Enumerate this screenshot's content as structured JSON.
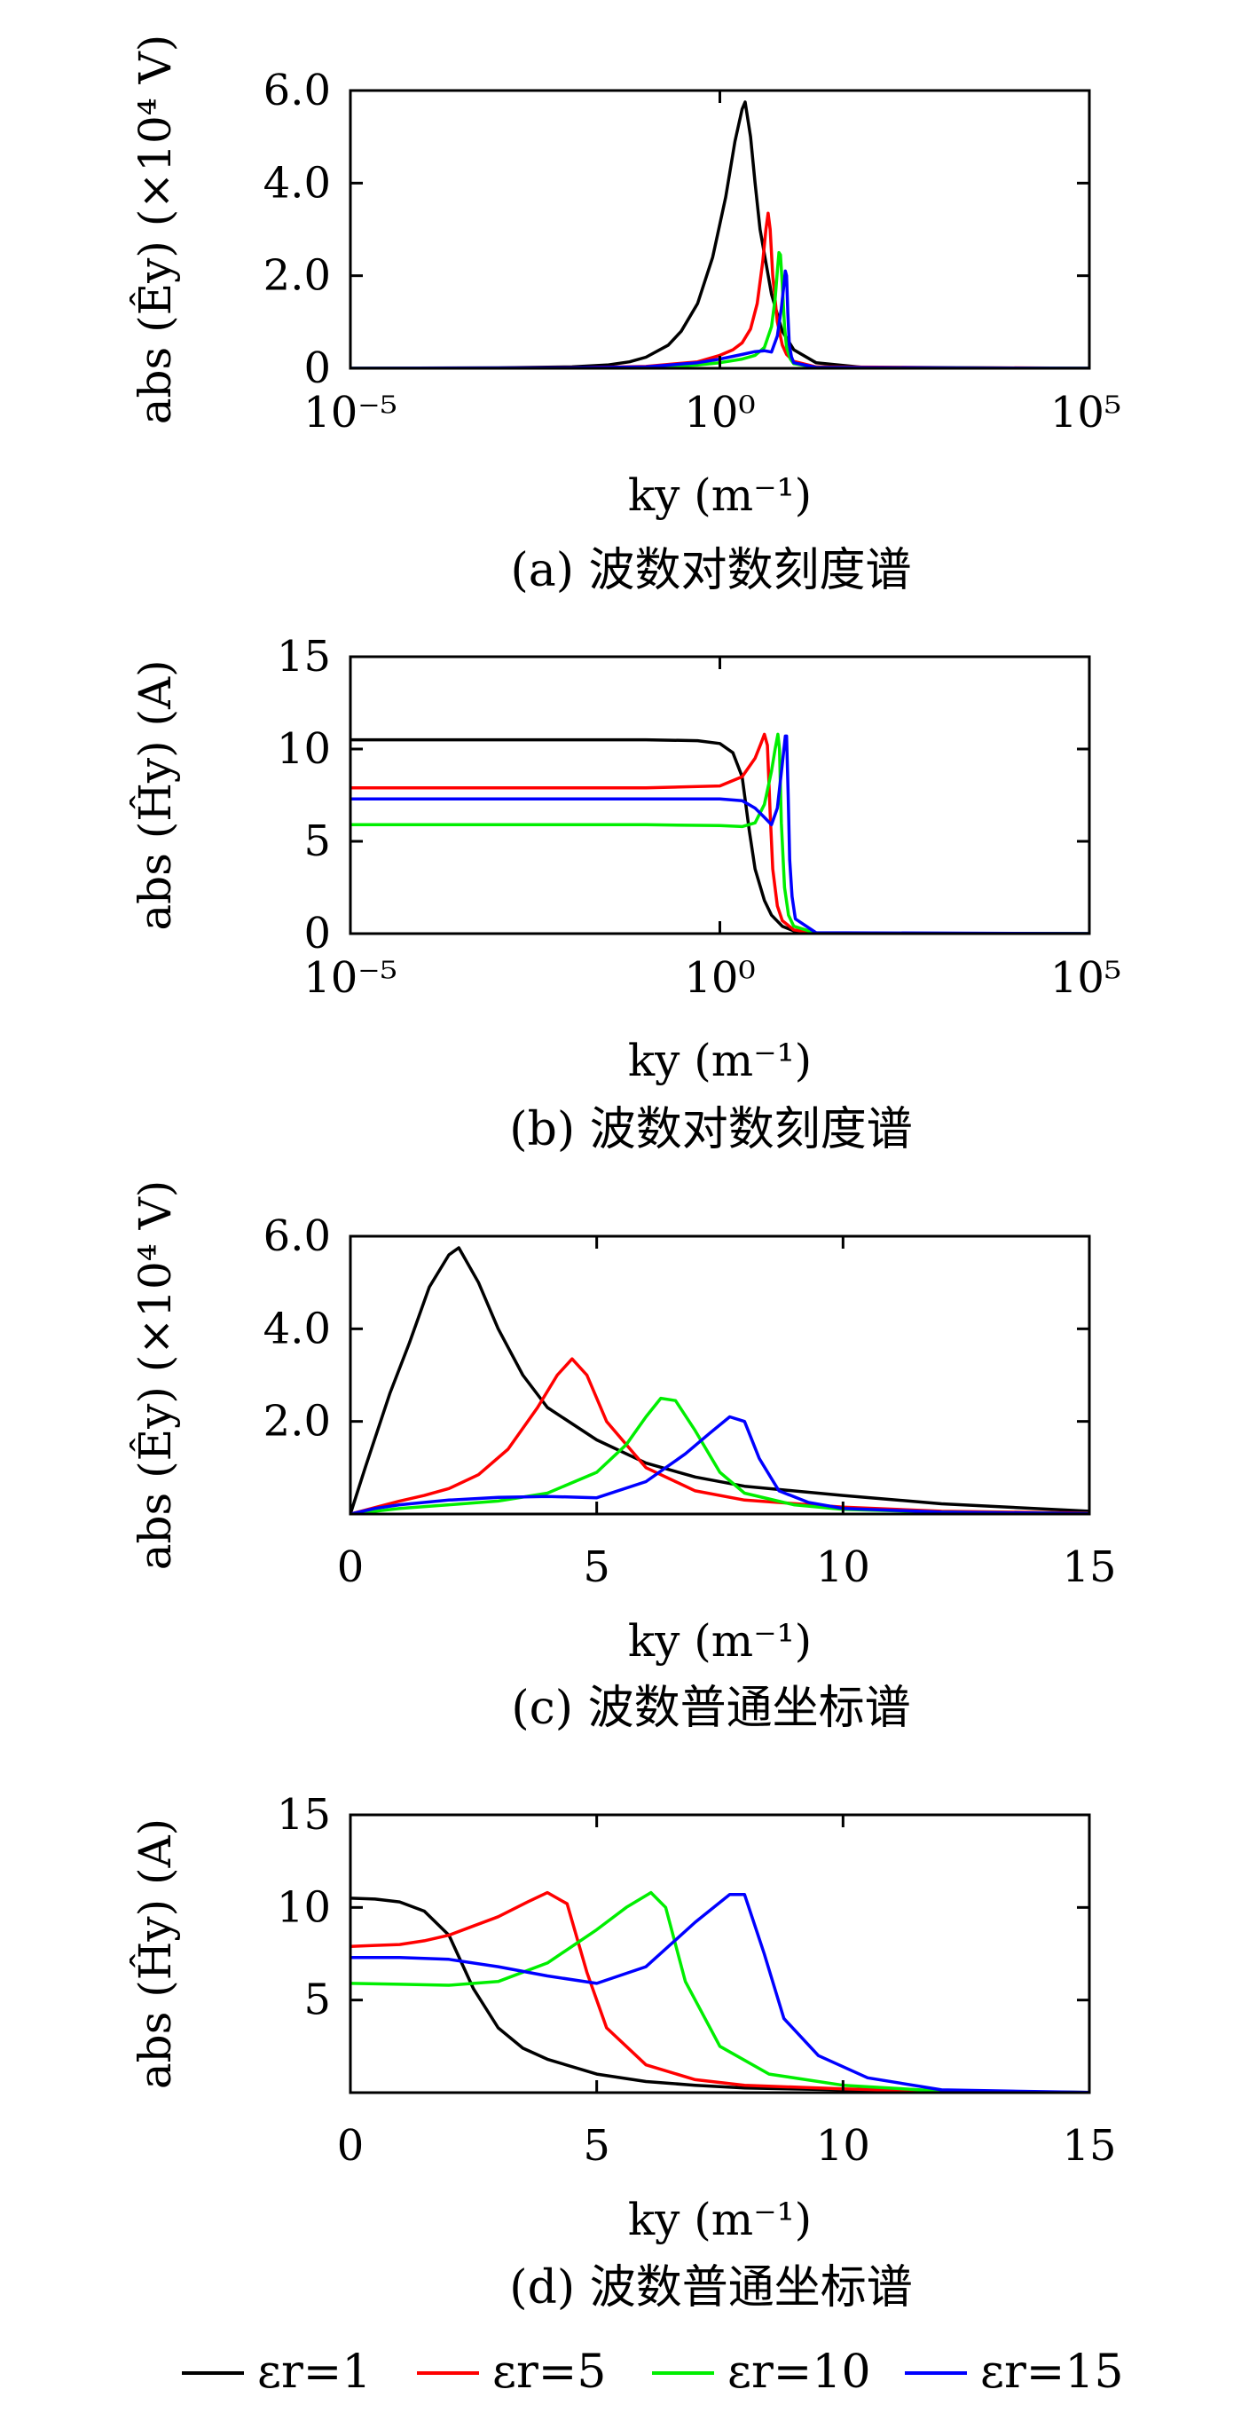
{
  "figure": {
    "legend": [
      {
        "name": "εr=1",
        "color": "#000000"
      },
      {
        "name": "εr=5",
        "color": "#ff0000"
      },
      {
        "name": "εr=10",
        "color": "#00ee00"
      },
      {
        "name": "εr=15",
        "color": "#0000ff"
      }
    ]
  },
  "chart_data": [
    {
      "type": "line",
      "caption": "(a) 波数对数刻度谱",
      "xlabel": "ky (m⁻¹)",
      "ylabel": "abs (Êy) (×10⁴ V)",
      "xscale": "log",
      "xlim": [
        1e-05,
        100000
      ],
      "ylim": [
        0,
        6.0
      ],
      "xticks": [
        {
          "v": 1e-05,
          "label": "10⁻⁵"
        },
        {
          "v": 1,
          "label": "10⁰"
        },
        {
          "v": 100000,
          "label": "10⁵"
        }
      ],
      "yticks": [
        {
          "v": 0,
          "label": "0"
        },
        {
          "v": 2,
          "label": "2.0"
        },
        {
          "v": 4,
          "label": "4.0"
        },
        {
          "v": 6,
          "label": "6.0"
        }
      ],
      "series": [
        {
          "name": "εr=1",
          "color": "#000000",
          "x": [
            1e-05,
            0.001,
            0.01,
            0.03,
            0.06,
            0.1,
            0.2,
            0.3,
            0.5,
            0.8,
            1.2,
            1.6,
            2.0,
            2.2,
            2.6,
            3.0,
            3.5,
            5,
            7,
            10,
            20,
            100,
            100000
          ],
          "y": [
            0,
            0.01,
            0.03,
            0.07,
            0.14,
            0.24,
            0.5,
            0.8,
            1.4,
            2.4,
            3.7,
            4.9,
            5.6,
            5.75,
            5.0,
            4.0,
            3.0,
            1.6,
            0.8,
            0.4,
            0.12,
            0.01,
            0
          ]
        },
        {
          "name": "εr=5",
          "color": "#ff0000",
          "x": [
            1e-05,
            0.001,
            0.01,
            0.1,
            0.5,
            1.0,
            1.5,
            2.0,
            2.6,
            3.2,
            3.8,
            4.2,
            4.5,
            4.8,
            5.2,
            6,
            7,
            8,
            10,
            20,
            100000
          ],
          "y": [
            0,
            0.005,
            0.01,
            0.04,
            0.14,
            0.28,
            0.4,
            0.55,
            0.85,
            1.4,
            2.3,
            3.0,
            3.35,
            3.0,
            2.0,
            1.0,
            0.5,
            0.3,
            0.15,
            0.03,
            0
          ]
        },
        {
          "name": "εr=10",
          "color": "#00ee00",
          "x": [
            1e-05,
            0.01,
            0.1,
            0.5,
            1,
            2,
            3,
            4,
            5,
            5.6,
            6.0,
            6.3,
            6.6,
            7.0,
            7.5,
            8,
            9,
            10,
            20,
            100000
          ],
          "y": [
            0,
            0.005,
            0.02,
            0.07,
            0.12,
            0.2,
            0.28,
            0.45,
            0.9,
            1.5,
            2.1,
            2.5,
            2.45,
            1.8,
            0.9,
            0.45,
            0.2,
            0.1,
            0.02,
            0
          ]
        },
        {
          "name": "εr=15",
          "color": "#0000ff",
          "x": [
            1e-05,
            0.01,
            0.1,
            0.5,
            1,
            2,
            3,
            4,
            5,
            6,
            6.8,
            7.3,
            7.7,
            8.0,
            8.3,
            8.7,
            9.3,
            10,
            20,
            100000
          ],
          "y": [
            0,
            0.01,
            0.03,
            0.12,
            0.2,
            0.3,
            0.36,
            0.38,
            0.35,
            0.7,
            1.3,
            1.75,
            2.1,
            2.0,
            1.2,
            0.5,
            0.25,
            0.12,
            0.02,
            0
          ]
        }
      ]
    },
    {
      "type": "line",
      "caption": "(b) 波数对数刻度谱",
      "xlabel": "ky (m⁻¹)",
      "ylabel": "abs (Ĥy) (A)",
      "xscale": "log",
      "xlim": [
        1e-05,
        100000
      ],
      "ylim": [
        0,
        15
      ],
      "xticks": [
        {
          "v": 1e-05,
          "label": "10⁻⁵"
        },
        {
          "v": 1,
          "label": "10⁰"
        },
        {
          "v": 100000,
          "label": "10⁵"
        }
      ],
      "yticks": [
        {
          "v": 0,
          "label": "0"
        },
        {
          "v": 5,
          "label": "5"
        },
        {
          "v": 10,
          "label": "10"
        },
        {
          "v": 15,
          "label": "15"
        }
      ],
      "series": [
        {
          "name": "εr=1",
          "color": "#000000",
          "x": [
            1e-05,
            0.1,
            0.5,
            1.0,
            1.5,
            2.0,
            2.5,
            3.0,
            4.0,
            5.0,
            7.0,
            10,
            20,
            100000
          ],
          "y": [
            10.5,
            10.5,
            10.45,
            10.3,
            9.8,
            8.5,
            5.6,
            3.5,
            1.8,
            1.0,
            0.4,
            0.15,
            0.02,
            0
          ]
        },
        {
          "name": "εr=5",
          "color": "#ff0000",
          "x": [
            1e-05,
            0.1,
            1.0,
            2.0,
            3.0,
            3.6,
            4.0,
            4.4,
            4.8,
            5.2,
            6.0,
            7.0,
            10,
            20,
            100000
          ],
          "y": [
            7.9,
            7.9,
            8.0,
            8.5,
            9.5,
            10.3,
            10.8,
            10.2,
            6.5,
            3.5,
            1.5,
            0.7,
            0.2,
            0.02,
            0
          ]
        },
        {
          "name": "εr=10",
          "color": "#00ee00",
          "x": [
            1e-05,
            0.1,
            1.0,
            2.0,
            3.0,
            4.0,
            5.0,
            5.6,
            6.1,
            6.4,
            6.8,
            7.5,
            8.5,
            10,
            20,
            100000
          ],
          "y": [
            5.9,
            5.9,
            5.85,
            5.8,
            6.0,
            7.0,
            8.8,
            10.0,
            10.8,
            10.0,
            6.0,
            2.5,
            1.0,
            0.4,
            0.03,
            0
          ]
        },
        {
          "name": "εr=15",
          "color": "#0000ff",
          "x": [
            1e-05,
            0.1,
            1.0,
            2.0,
            3.0,
            4.0,
            5.0,
            6.0,
            7.0,
            7.7,
            8.0,
            8.4,
            8.8,
            9.5,
            10.5,
            20,
            100000
          ],
          "y": [
            7.3,
            7.3,
            7.3,
            7.2,
            6.8,
            6.3,
            5.9,
            6.8,
            9.2,
            10.7,
            10.7,
            7.5,
            4.0,
            2.0,
            0.8,
            0.05,
            0
          ]
        }
      ]
    },
    {
      "type": "line",
      "caption": "(c) 波数普通坐标谱",
      "xlabel": "ky (m⁻¹)",
      "ylabel": "abs (Êy) (×10⁴ V)",
      "xscale": "linear",
      "xlim": [
        0,
        15
      ],
      "ylim": [
        0,
        6.0
      ],
      "xticks": [
        {
          "v": 0,
          "label": "0"
        },
        {
          "v": 5,
          "label": "5"
        },
        {
          "v": 10,
          "label": "10"
        },
        {
          "v": 15,
          "label": "15"
        }
      ],
      "yticks": [
        {
          "v": 2,
          "label": "2.0"
        },
        {
          "v": 4,
          "label": "4.0"
        },
        {
          "v": 6,
          "label": "6.0"
        }
      ],
      "series": [
        {
          "name": "εr=1",
          "color": "#000000",
          "x": [
            0,
            0.3,
            0.8,
            1.2,
            1.6,
            2.0,
            2.2,
            2.6,
            3.0,
            3.5,
            4.0,
            5.0,
            6.0,
            7.0,
            8.0,
            10,
            12,
            15
          ],
          "y": [
            0,
            1.0,
            2.6,
            3.7,
            4.9,
            5.6,
            5.75,
            5.0,
            4.0,
            3.0,
            2.3,
            1.6,
            1.1,
            0.8,
            0.6,
            0.4,
            0.22,
            0.06
          ]
        },
        {
          "name": "εr=5",
          "color": "#ff0000",
          "x": [
            0,
            0.5,
            1.0,
            1.5,
            2.0,
            2.6,
            3.2,
            3.8,
            4.2,
            4.5,
            4.8,
            5.2,
            6.0,
            7.0,
            8.0,
            10,
            12,
            15
          ],
          "y": [
            0,
            0.14,
            0.28,
            0.4,
            0.55,
            0.85,
            1.4,
            2.3,
            3.0,
            3.35,
            3.0,
            2.0,
            1.0,
            0.5,
            0.3,
            0.15,
            0.06,
            0.02
          ]
        },
        {
          "name": "εr=10",
          "color": "#00ee00",
          "x": [
            0,
            1,
            2,
            3,
            4,
            5,
            5.6,
            6.0,
            6.3,
            6.6,
            7.0,
            7.5,
            8,
            9,
            10,
            12,
            15
          ],
          "y": [
            0,
            0.12,
            0.2,
            0.28,
            0.45,
            0.9,
            1.5,
            2.1,
            2.5,
            2.45,
            1.8,
            0.9,
            0.45,
            0.2,
            0.1,
            0.04,
            0.01
          ]
        },
        {
          "name": "εr=15",
          "color": "#0000ff",
          "x": [
            0,
            0.5,
            1,
            2,
            3,
            4,
            5,
            6,
            6.8,
            7.3,
            7.7,
            8.0,
            8.3,
            8.7,
            9.3,
            10,
            12,
            15
          ],
          "y": [
            0,
            0.12,
            0.2,
            0.3,
            0.36,
            0.38,
            0.35,
            0.7,
            1.3,
            1.75,
            2.1,
            2.0,
            1.2,
            0.5,
            0.25,
            0.12,
            0.04,
            0.01
          ]
        }
      ]
    },
    {
      "type": "line",
      "caption": "(d) 波数普通坐标谱",
      "xlabel": "ky (m⁻¹)",
      "ylabel": "abs (Ĥy) (A)",
      "xscale": "linear",
      "xlim": [
        0,
        15
      ],
      "ylim": [
        0,
        15
      ],
      "xticks": [
        {
          "v": 0,
          "label": "0"
        },
        {
          "v": 5,
          "label": "5"
        },
        {
          "v": 10,
          "label": "10"
        },
        {
          "v": 15,
          "label": "15"
        }
      ],
      "yticks": [
        {
          "v": 5,
          "label": "5"
        },
        {
          "v": 10,
          "label": "10"
        },
        {
          "v": 15,
          "label": "15"
        }
      ],
      "series": [
        {
          "name": "εr=1",
          "color": "#000000",
          "x": [
            0,
            0.5,
            1.0,
            1.5,
            2.0,
            2.5,
            3.0,
            3.5,
            4.0,
            5.0,
            6.0,
            7.0,
            8.0,
            10,
            12,
            15
          ],
          "y": [
            10.5,
            10.45,
            10.3,
            9.8,
            8.5,
            5.6,
            3.5,
            2.4,
            1.8,
            1.0,
            0.6,
            0.4,
            0.25,
            0.15,
            0.05,
            0.01
          ]
        },
        {
          "name": "εr=5",
          "color": "#ff0000",
          "x": [
            0,
            0.5,
            1.0,
            1.5,
            2.0,
            2.5,
            3.0,
            3.6,
            4.0,
            4.4,
            4.8,
            5.2,
            6.0,
            7.0,
            8.0,
            10,
            12,
            15
          ],
          "y": [
            7.9,
            7.95,
            8.0,
            8.2,
            8.5,
            9.0,
            9.5,
            10.3,
            10.8,
            10.2,
            6.5,
            3.5,
            1.5,
            0.7,
            0.4,
            0.2,
            0.06,
            0.01
          ]
        },
        {
          "name": "εr=10",
          "color": "#00ee00",
          "x": [
            0,
            1.0,
            2.0,
            3.0,
            4.0,
            5.0,
            5.6,
            6.1,
            6.4,
            6.8,
            7.5,
            8.5,
            10,
            12,
            15
          ],
          "y": [
            5.9,
            5.85,
            5.8,
            6.0,
            7.0,
            8.8,
            10.0,
            10.8,
            10.0,
            6.0,
            2.5,
            1.0,
            0.4,
            0.08,
            0.01
          ]
        },
        {
          "name": "εr=15",
          "color": "#0000ff",
          "x": [
            0,
            1.0,
            2.0,
            3.0,
            4.0,
            5.0,
            6.0,
            7.0,
            7.7,
            8.0,
            8.4,
            8.8,
            9.5,
            10.5,
            12,
            15
          ],
          "y": [
            7.3,
            7.3,
            7.2,
            6.8,
            6.3,
            5.9,
            6.8,
            9.2,
            10.7,
            10.7,
            7.5,
            4.0,
            2.0,
            0.8,
            0.15,
            0.01
          ]
        }
      ]
    }
  ]
}
